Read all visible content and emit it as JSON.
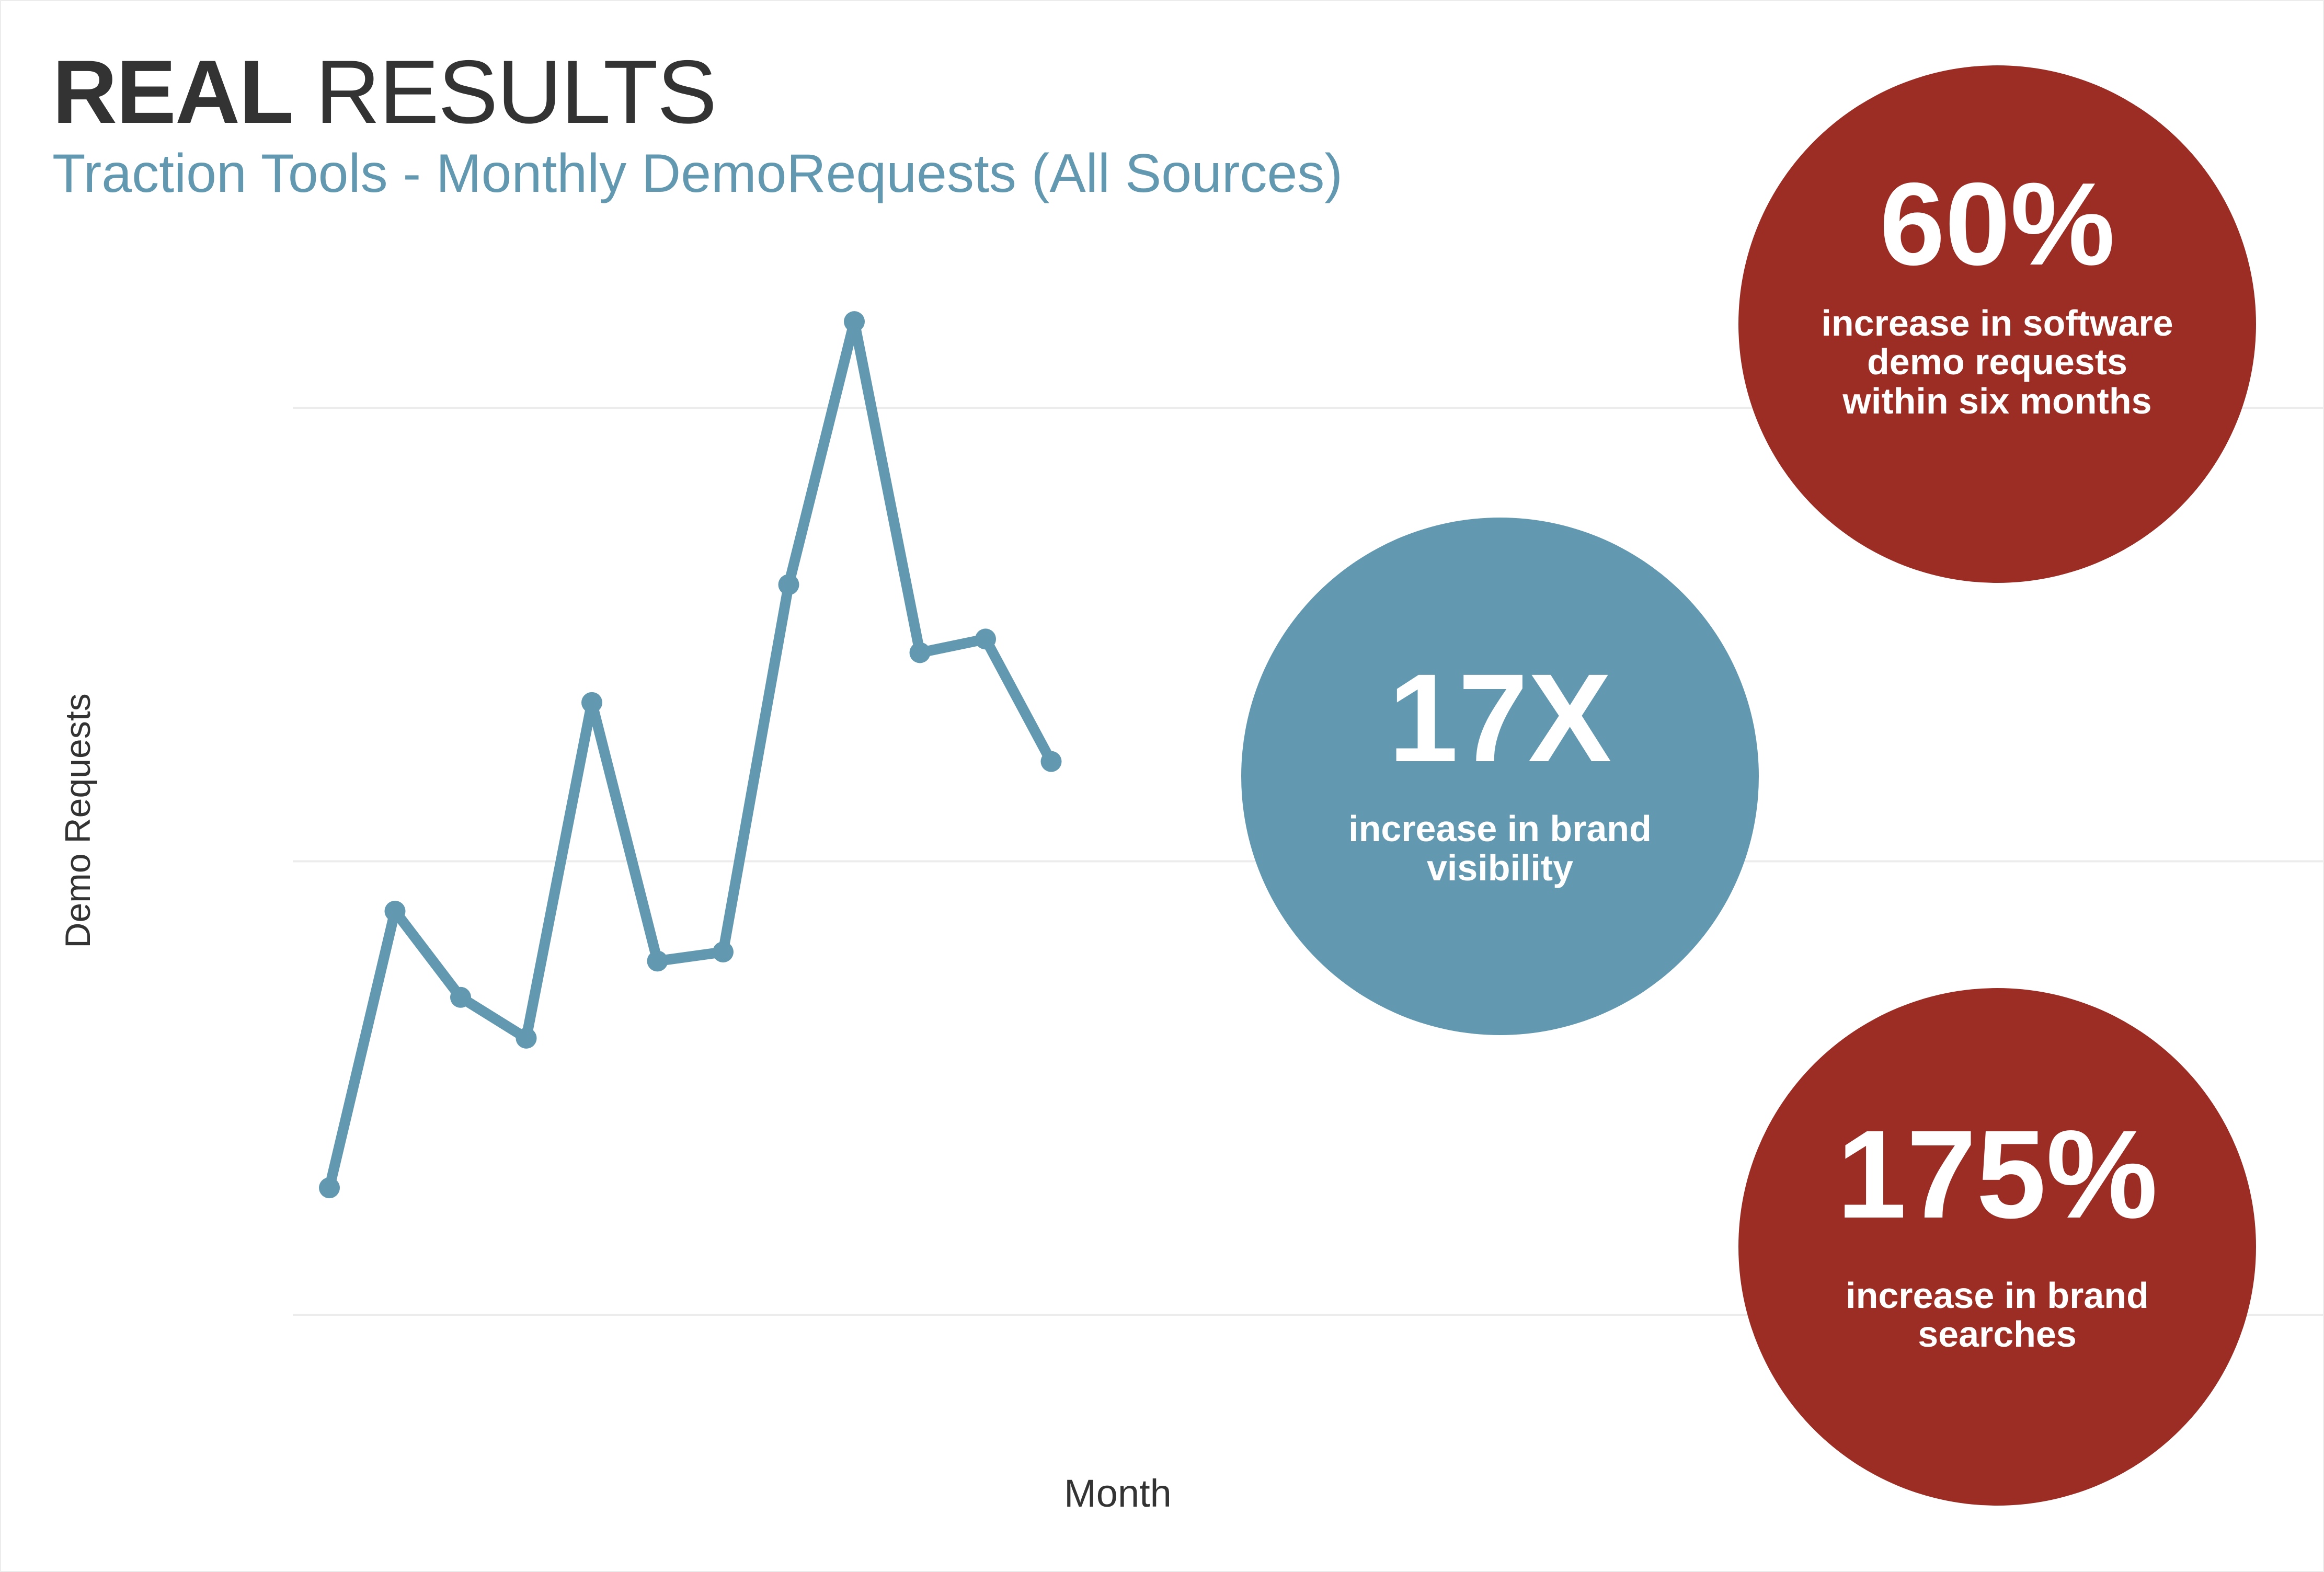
{
  "header": {
    "title_bold": "REAL",
    "title_light": "RESULTS",
    "subtitle": "Traction Tools - Monthly DemoRequests (All Sources)"
  },
  "colors": {
    "line": "#6299b0",
    "accent_red": "#9c2d24",
    "accent_blue": "#6299b0",
    "gridline": "#ececec",
    "text_dark": "#333333"
  },
  "chart_data": {
    "type": "line",
    "title": "Traction Tools - Monthly DemoRequests (All Sources)",
    "xlabel": "Month",
    "ylabel": "Demo Requests",
    "x": [
      1,
      2,
      3,
      4,
      5,
      6,
      7,
      8,
      9,
      10,
      11,
      12
    ],
    "series": [
      {
        "values": [
          0.28,
          0.89,
          0.7,
          0.61,
          1.35,
          0.78,
          0.8,
          1.61,
          2.19,
          1.46,
          1.49,
          1.22
        ]
      }
    ],
    "ylim": [
      0,
      2.0
    ],
    "gridlines": [
      0,
      1,
      2
    ],
    "grid": true,
    "x_tick_labels_shown": false,
    "y_tick_labels_shown": false,
    "legend": "none"
  },
  "stats": [
    {
      "value": "60%",
      "description": "increase in software demo requests within six months",
      "color": "#9c2d24"
    },
    {
      "value": "17X",
      "description": "increase in brand visibility",
      "color": "#6299b0"
    },
    {
      "value": "175%",
      "description": "increase in brand searches",
      "color": "#9c2d24"
    }
  ]
}
